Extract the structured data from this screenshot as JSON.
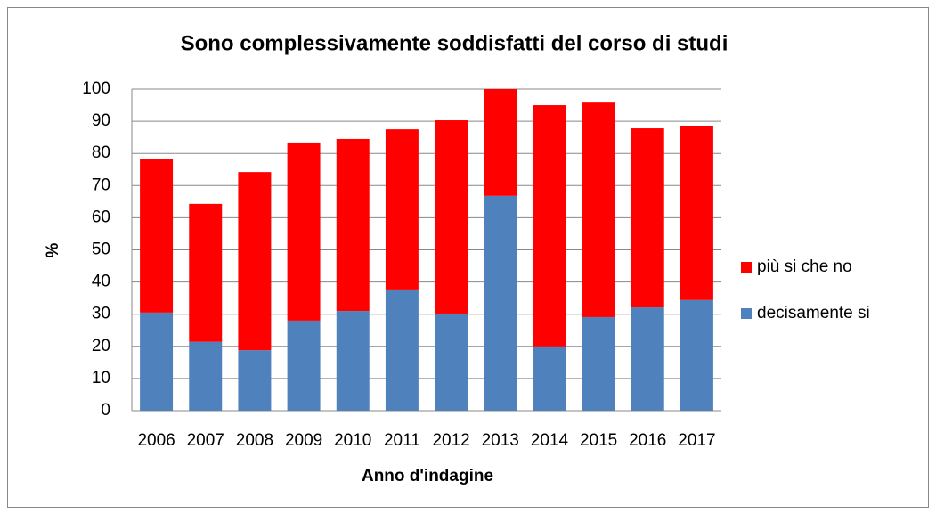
{
  "chart_data": {
    "type": "stacked_bar",
    "title": "Sono complessivamente soddisfatti del corso di studi",
    "x_label": "Anno d'indagine",
    "y_label": "%",
    "categories": [
      "2006",
      "2007",
      "2008",
      "2009",
      "2010",
      "2011",
      "2012",
      "2013",
      "2014",
      "2015",
      "2016",
      "2017"
    ],
    "series": [
      {
        "name": "decisamente si",
        "color": "#4f81bd",
        "values": [
          30.5,
          21.4,
          18.8,
          28,
          31,
          37.7,
          30.2,
          66.8,
          20,
          29.1,
          32.1,
          34.4
        ]
      },
      {
        "name": "più si che no",
        "color": "#ff0000",
        "values": [
          47.7,
          42.9,
          55.4,
          55.4,
          53.5,
          49.8,
          60.1,
          33.2,
          75,
          66.7,
          55.7,
          54
        ]
      }
    ],
    "ylim": [
      0,
      100
    ],
    "yticks": [
      0,
      10,
      20,
      30,
      40,
      50,
      60,
      70,
      80,
      90,
      100
    ],
    "grid": true,
    "legend": "right"
  }
}
